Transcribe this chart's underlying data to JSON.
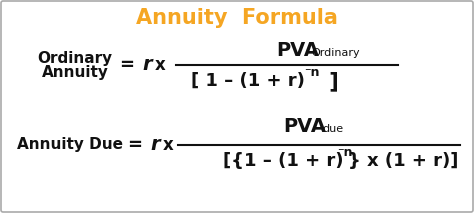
{
  "title": "Annuity  Formula",
  "title_color": "#F5A623",
  "title_fontsize": 15,
  "background_color": "#ffffff",
  "border_color": "#aaaaaa",
  "text_color": "#111111",
  "figsize": [
    4.74,
    2.13
  ],
  "dpi": 100,
  "formula1_label_line1": "Ordinary",
  "formula1_label_line2": "Annuity",
  "formula2_label": "Annuity Due",
  "label_fontsize": 11,
  "eq_fontsize": 12,
  "pva_fontsize": 14,
  "sub_fontsize": 8,
  "den_fontsize": 13,
  "sup_fontsize": 8
}
